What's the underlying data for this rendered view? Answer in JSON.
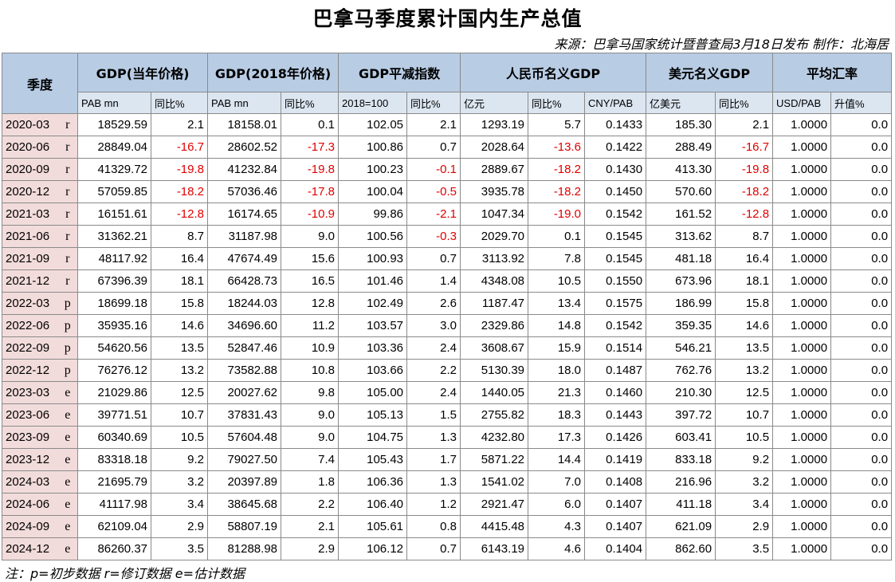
{
  "header": {
    "title": "巴拿马季度累计国内生产总值",
    "source": "来源：巴拿马国家统计暨普查局3月18日发布  制作：北海居"
  },
  "table": {
    "groups": [
      {
        "label": "季度",
        "span": 2
      },
      {
        "label": "GDP(当年价格)",
        "span": 2
      },
      {
        "label": "GDP(2018年价格)",
        "span": 2
      },
      {
        "label": "GDP平减指数",
        "span": 2
      },
      {
        "label": "人民币名义GDP",
        "span": 3
      },
      {
        "label": "美元名义GDP",
        "span": 2
      },
      {
        "label": "平均汇率",
        "span": 2
      }
    ],
    "subheaders": [
      "PAB mn",
      "同比%",
      "PAB mn",
      "同比%",
      "2018=100",
      "同比%",
      "亿元",
      "同比%",
      "CNY/PAB",
      "亿美元",
      "同比%",
      "USD/PAB",
      "升值%"
    ],
    "rows": [
      [
        "2020-03",
        "r",
        "18529.59",
        "2.1",
        "18158.01",
        "0.1",
        "102.05",
        "2.1",
        "1293.19",
        "5.7",
        "0.1433",
        "185.30",
        "2.1",
        "1.0000",
        "0.0"
      ],
      [
        "2020-06",
        "r",
        "28849.04",
        "-16.7",
        "28602.52",
        "-17.3",
        "100.86",
        "0.7",
        "2028.64",
        "-13.6",
        "0.1422",
        "288.49",
        "-16.7",
        "1.0000",
        "0.0"
      ],
      [
        "2020-09",
        "r",
        "41329.72",
        "-19.8",
        "41232.84",
        "-19.8",
        "100.23",
        "-0.1",
        "2889.67",
        "-18.2",
        "0.1430",
        "413.30",
        "-19.8",
        "1.0000",
        "0.0"
      ],
      [
        "2020-12",
        "r",
        "57059.85",
        "-18.2",
        "57036.46",
        "-17.8",
        "100.04",
        "-0.5",
        "3935.78",
        "-18.2",
        "0.1450",
        "570.60",
        "-18.2",
        "1.0000",
        "0.0"
      ],
      [
        "2021-03",
        "r",
        "16151.61",
        "-12.8",
        "16174.65",
        "-10.9",
        "99.86",
        "-2.1",
        "1047.34",
        "-19.0",
        "0.1542",
        "161.52",
        "-12.8",
        "1.0000",
        "0.0"
      ],
      [
        "2021-06",
        "r",
        "31362.21",
        "8.7",
        "31187.98",
        "9.0",
        "100.56",
        "-0.3",
        "2029.70",
        "0.1",
        "0.1545",
        "313.62",
        "8.7",
        "1.0000",
        "0.0"
      ],
      [
        "2021-09",
        "r",
        "48117.92",
        "16.4",
        "47674.49",
        "15.6",
        "100.93",
        "0.7",
        "3113.92",
        "7.8",
        "0.1545",
        "481.18",
        "16.4",
        "1.0000",
        "0.0"
      ],
      [
        "2021-12",
        "r",
        "67396.39",
        "18.1",
        "66428.73",
        "16.5",
        "101.46",
        "1.4",
        "4348.08",
        "10.5",
        "0.1550",
        "673.96",
        "18.1",
        "1.0000",
        "0.0"
      ],
      [
        "2022-03",
        "p",
        "18699.18",
        "15.8",
        "18244.03",
        "12.8",
        "102.49",
        "2.6",
        "1187.47",
        "13.4",
        "0.1575",
        "186.99",
        "15.8",
        "1.0000",
        "0.0"
      ],
      [
        "2022-06",
        "p",
        "35935.16",
        "14.6",
        "34696.60",
        "11.2",
        "103.57",
        "3.0",
        "2329.86",
        "14.8",
        "0.1542",
        "359.35",
        "14.6",
        "1.0000",
        "0.0"
      ],
      [
        "2022-09",
        "p",
        "54620.56",
        "13.5",
        "52847.46",
        "10.9",
        "103.36",
        "2.4",
        "3608.67",
        "15.9",
        "0.1514",
        "546.21",
        "13.5",
        "1.0000",
        "0.0"
      ],
      [
        "2022-12",
        "p",
        "76276.12",
        "13.2",
        "73582.88",
        "10.8",
        "103.66",
        "2.2",
        "5130.39",
        "18.0",
        "0.1487",
        "762.76",
        "13.2",
        "1.0000",
        "0.0"
      ],
      [
        "2023-03",
        "e",
        "21029.86",
        "12.5",
        "20027.62",
        "9.8",
        "105.00",
        "2.4",
        "1440.05",
        "21.3",
        "0.1460",
        "210.30",
        "12.5",
        "1.0000",
        "0.0"
      ],
      [
        "2023-06",
        "e",
        "39771.51",
        "10.7",
        "37831.43",
        "9.0",
        "105.13",
        "1.5",
        "2755.82",
        "18.3",
        "0.1443",
        "397.72",
        "10.7",
        "1.0000",
        "0.0"
      ],
      [
        "2023-09",
        "e",
        "60340.69",
        "10.5",
        "57604.48",
        "9.0",
        "104.75",
        "1.3",
        "4232.80",
        "17.3",
        "0.1426",
        "603.41",
        "10.5",
        "1.0000",
        "0.0"
      ],
      [
        "2023-12",
        "e",
        "83318.18",
        "9.2",
        "79027.50",
        "7.4",
        "105.43",
        "1.7",
        "5871.22",
        "14.4",
        "0.1419",
        "833.18",
        "9.2",
        "1.0000",
        "0.0"
      ],
      [
        "2024-03",
        "e",
        "21695.79",
        "3.2",
        "20397.89",
        "1.8",
        "106.36",
        "1.3",
        "1541.02",
        "7.0",
        "0.1408",
        "216.96",
        "3.2",
        "1.0000",
        "0.0"
      ],
      [
        "2024-06",
        "e",
        "41117.98",
        "3.4",
        "38645.68",
        "2.2",
        "106.40",
        "1.2",
        "2921.47",
        "6.0",
        "0.1407",
        "411.18",
        "3.4",
        "1.0000",
        "0.0"
      ],
      [
        "2024-09",
        "e",
        "62109.04",
        "2.9",
        "58807.19",
        "2.1",
        "105.61",
        "0.8",
        "4415.48",
        "4.3",
        "0.1407",
        "621.09",
        "2.9",
        "1.0000",
        "0.0"
      ],
      [
        "2024-12",
        "e",
        "86260.37",
        "3.5",
        "81288.98",
        "2.9",
        "106.12",
        "0.7",
        "6143.19",
        "4.6",
        "0.1404",
        "862.60",
        "3.5",
        "1.0000",
        "0.0"
      ]
    ]
  },
  "footnote": "注：p=初步数据  r=修订数据  e=估计数据"
}
